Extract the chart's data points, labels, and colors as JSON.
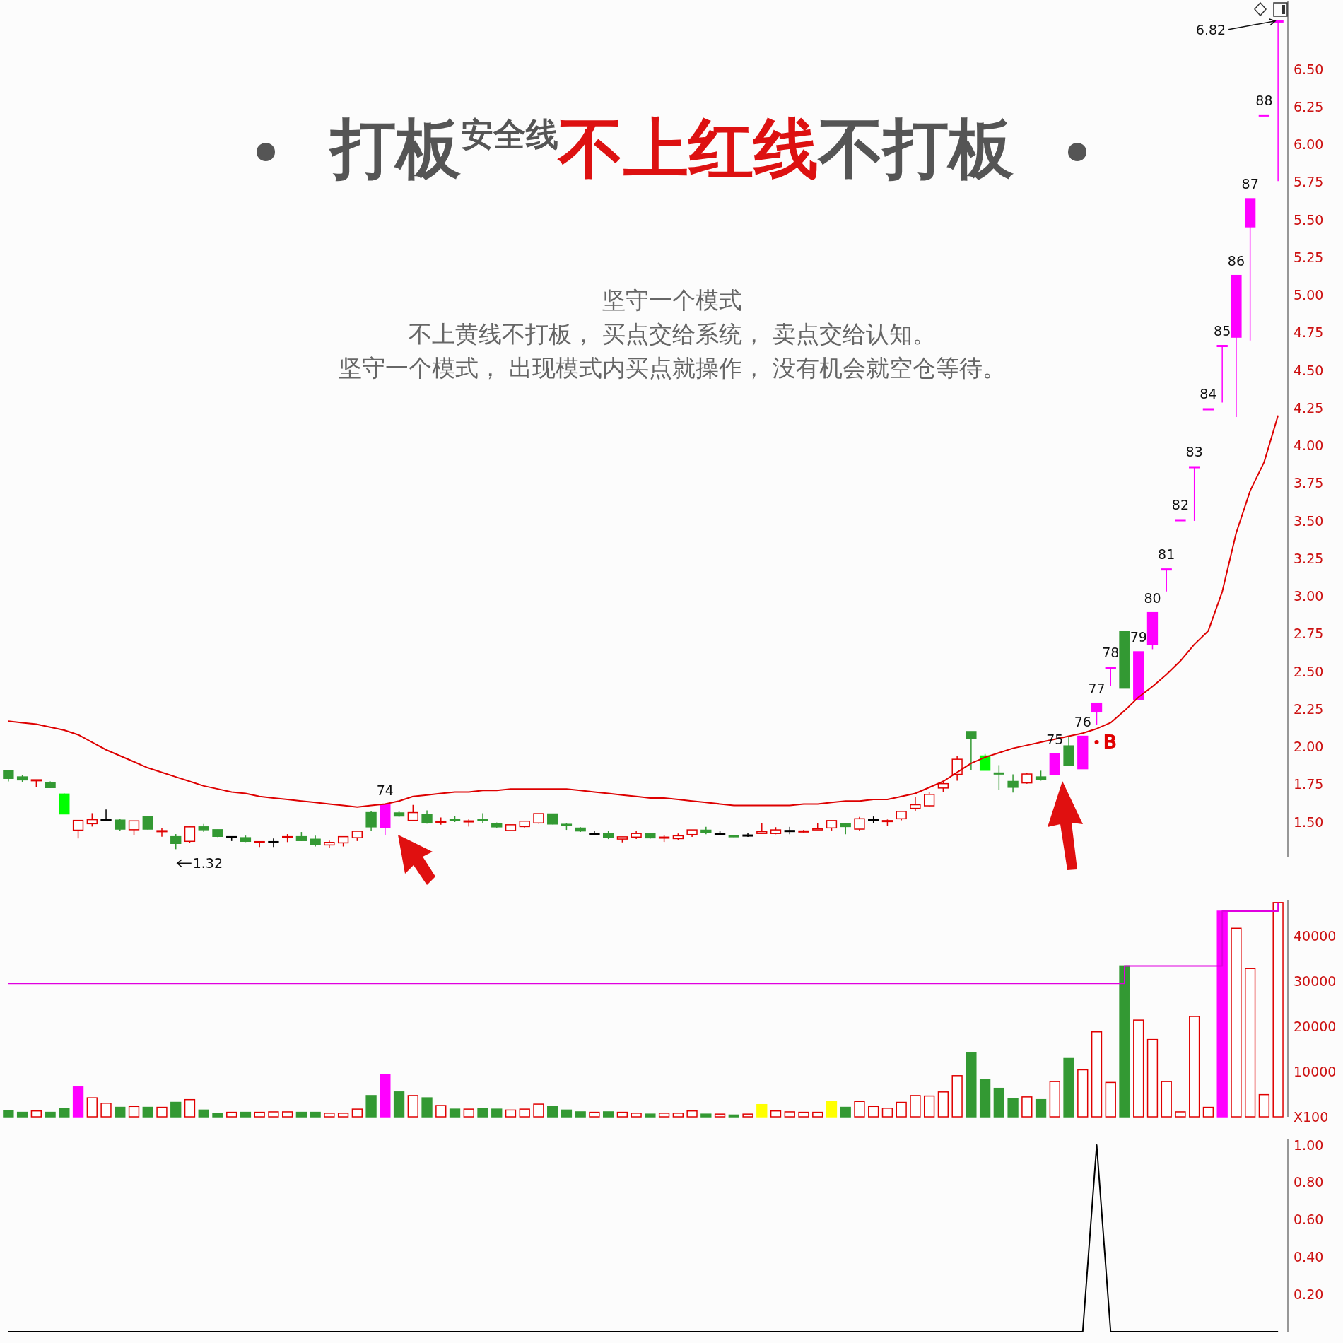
{
  "chart_data": [
    {
      "type": "candlestick",
      "title": "打板安全线不上红线不打板",
      "subtitle": "坚守一个模式",
      "categories": [
        null,
        null,
        null,
        null,
        null,
        null,
        null,
        null,
        null,
        null,
        null,
        null,
        null,
        null,
        null,
        null,
        null,
        null,
        null,
        null,
        null,
        null,
        null,
        null,
        null,
        null,
        null,
        null,
        null,
        null,
        null,
        null,
        null,
        null,
        null,
        null,
        null,
        null,
        null,
        null,
        null,
        null,
        null,
        null,
        null,
        null,
        null,
        null,
        null,
        null,
        null,
        null,
        null,
        null,
        null,
        null,
        null,
        null,
        null,
        null,
        null,
        null,
        null,
        null,
        null,
        null,
        null,
        null,
        null,
        null,
        null,
        null,
        null,
        null,
        null,
        null,
        null,
        null,
        null,
        null,
        null,
        null,
        null,
        null,
        null,
        null,
        null,
        null,
        null,
        null,
        null,
        null
      ],
      "ohlc": [
        [
          1.84,
          1.84,
          1.77,
          1.79
        ],
        [
          1.8,
          1.81,
          1.765,
          1.78
        ],
        [
          1.775,
          1.781,
          1.733,
          1.781
        ],
        [
          1.762,
          1.77,
          1.725,
          1.729
        ],
        [
          1.686,
          1.69,
          1.554,
          1.554
        ],
        [
          1.446,
          1.511,
          1.391,
          1.511
        ],
        [
          1.489,
          1.559,
          1.47,
          1.516
        ],
        [
          1.518,
          1.583,
          1.516,
          1.518
        ],
        [
          1.513,
          1.52,
          1.441,
          1.453
        ],
        [
          1.449,
          1.508,
          1.415,
          1.508
        ],
        [
          1.537,
          1.54,
          1.45,
          1.453
        ],
        [
          1.441,
          1.463,
          1.403,
          1.443
        ],
        [
          1.403,
          1.42,
          1.32,
          1.358
        ],
        [
          1.372,
          1.47,
          1.36,
          1.468
        ],
        [
          1.468,
          1.487,
          1.434,
          1.449
        ],
        [
          1.449,
          1.45,
          1.4,
          1.405
        ],
        [
          1.403,
          1.403,
          1.374,
          1.403
        ],
        [
          1.396,
          1.41,
          1.367,
          1.372
        ],
        [
          1.369,
          1.37,
          1.334,
          1.37
        ],
        [
          1.37,
          1.391,
          1.334,
          1.37
        ],
        [
          1.401,
          1.42,
          1.367,
          1.403
        ],
        [
          1.403,
          1.434,
          1.374,
          1.377
        ],
        [
          1.386,
          1.41,
          1.338,
          1.353
        ],
        [
          1.348,
          1.377,
          1.331,
          1.365
        ],
        [
          1.362,
          1.403,
          1.338,
          1.403
        ],
        [
          1.396,
          1.44,
          1.374,
          1.439
        ],
        [
          1.563,
          1.57,
          1.439,
          1.468
        ],
        [
          1.463,
          1.614,
          1.415,
          1.614
        ],
        [
          1.561,
          1.573,
          1.535,
          1.54
        ],
        [
          1.511,
          1.614,
          1.51,
          1.563
        ],
        [
          1.549,
          1.578,
          1.49,
          1.494
        ],
        [
          1.504,
          1.53,
          1.482,
          1.506
        ],
        [
          1.518,
          1.54,
          1.5,
          1.516
        ],
        [
          1.506,
          1.518,
          1.47,
          1.508
        ],
        [
          1.518,
          1.559,
          1.494,
          1.516
        ],
        [
          1.489,
          1.497,
          1.463,
          1.468
        ],
        [
          1.444,
          1.482,
          1.441,
          1.482
        ],
        [
          1.47,
          1.508,
          1.465,
          1.506
        ],
        [
          1.494,
          1.556,
          1.49,
          1.556
        ],
        [
          1.554,
          1.556,
          1.485,
          1.487
        ],
        [
          1.485,
          1.493,
          1.448,
          1.476
        ],
        [
          1.46,
          1.466,
          1.434,
          1.441
        ],
        [
          1.426,
          1.439,
          1.412,
          1.426
        ],
        [
          1.424,
          1.439,
          1.387,
          1.4
        ],
        [
          1.387,
          1.402,
          1.365,
          1.402
        ],
        [
          1.4,
          1.439,
          1.387,
          1.424
        ],
        [
          1.424,
          1.426,
          1.39,
          1.395
        ],
        [
          1.398,
          1.414,
          1.368,
          1.4
        ],
        [
          1.39,
          1.424,
          1.382,
          1.409
        ],
        [
          1.417,
          1.448,
          1.402,
          1.448
        ],
        [
          1.446,
          1.468,
          1.419,
          1.429
        ],
        [
          1.426,
          1.439,
          1.412,
          1.426
        ],
        [
          1.412,
          1.414,
          1.4,
          1.402
        ],
        [
          1.414,
          1.426,
          1.402,
          1.414
        ],
        [
          1.424,
          1.493,
          1.424,
          1.436
        ],
        [
          1.424,
          1.466,
          1.419,
          1.448
        ],
        [
          1.444,
          1.468,
          1.419,
          1.444
        ],
        [
          1.44,
          1.448,
          1.426,
          1.441
        ],
        [
          1.448,
          1.493,
          1.448,
          1.456
        ],
        [
          1.461,
          1.51,
          1.444,
          1.51
        ],
        [
          1.49,
          1.49,
          1.419,
          1.47
        ],
        [
          1.453,
          1.534,
          1.444,
          1.522
        ],
        [
          1.517,
          1.537,
          1.493,
          1.517
        ],
        [
          1.508,
          1.517,
          1.475,
          1.51
        ],
        [
          1.522,
          1.571,
          1.512,
          1.571
        ],
        [
          1.591,
          1.665,
          1.574,
          1.615
        ],
        [
          1.608,
          1.701,
          1.603,
          1.684
        ],
        [
          1.726,
          1.775,
          1.701,
          1.755
        ],
        [
          1.817,
          1.94,
          1.775,
          1.917
        ],
        [
          2.101,
          2.101,
          1.844,
          2.057
        ],
        [
          1.939,
          1.952,
          1.844,
          1.844
        ],
        [
          1.826,
          1.878,
          1.711,
          1.824
        ],
        [
          1.77,
          1.817,
          1.696,
          1.731
        ],
        [
          1.76,
          1.829,
          1.755,
          1.819
        ],
        [
          1.8,
          1.841,
          1.775,
          1.782
        ],
        [
          1.814,
          1.952,
          1.814,
          1.952
        ],
        [
          2.006,
          2.07,
          1.873,
          1.878
        ],
        [
          1.854,
          2.07,
          1.854,
          2.07
        ],
        [
          2.231,
          2.29,
          2.147,
          2.29
        ],
        [
          2.526,
          2.526,
          2.406,
          2.526
        ],
        [
          2.768,
          2.768,
          2.389,
          2.389
        ],
        [
          2.315,
          2.631,
          2.315,
          2.631
        ],
        [
          2.68,
          2.891,
          2.648,
          2.891
        ],
        [
          3.181,
          3.181,
          3.032,
          3.181
        ],
        [
          3.508,
          3.508,
          3.508,
          3.508
        ],
        [
          3.86,
          3.86,
          3.5,
          3.86
        ],
        [
          4.245,
          4.245,
          4.245,
          4.245
        ],
        [
          4.665,
          4.665,
          4.286,
          4.665
        ],
        [
          4.72,
          5.13,
          4.19,
          5.13
        ],
        [
          5.453,
          5.64,
          4.698,
          5.64
        ],
        [
          6.196,
          6.196,
          6.196,
          6.196
        ],
        [
          6.82,
          6.82,
          5.757,
          6.82
        ]
      ],
      "colors": [
        "#339933",
        "#339933",
        "#e00000",
        "#339933",
        "#00ff00",
        "#e00000",
        "#e00000",
        "#000000",
        "#339933",
        "#e00000",
        "#339933",
        "#e00000",
        "#339933",
        "#e00000",
        "#339933",
        "#339933",
        "#000000",
        "#339933",
        "#e00000",
        "#000000",
        "#e00000",
        "#339933",
        "#339933",
        "#e00000",
        "#e00000",
        "#e00000",
        "#339933",
        "#ff00ff",
        "#339933",
        "#e00000",
        "#339933",
        "#e00000",
        "#339933",
        "#e00000",
        "#339933",
        "#339933",
        "#e00000",
        "#e00000",
        "#e00000",
        "#339933",
        "#339933",
        "#339933",
        "#000000",
        "#339933",
        "#e00000",
        "#e00000",
        "#339933",
        "#e00000",
        "#e00000",
        "#e00000",
        "#339933",
        "#000000",
        "#339933",
        "#000000",
        "#e00000",
        "#e00000",
        "#000000",
        "#e00000",
        "#e00000",
        "#e00000",
        "#339933",
        "#e00000",
        "#000000",
        "#e00000",
        "#e00000",
        "#e00000",
        "#e00000",
        "#e00000",
        "#e00000",
        "#339933",
        "#00ff00",
        "#339933",
        "#339933",
        "#e00000",
        "#339933",
        "#ff00ff",
        "#339933",
        "#ff00ff",
        "#ff00ff",
        "#ff00ff",
        "#339933",
        "#ff00ff",
        "#ff00ff",
        "#ff00ff",
        "#ff00ff",
        "#ff00ff",
        "#ff00ff",
        "#ff00ff",
        "#ff00ff",
        "#ff00ff",
        "#ff00ff",
        "#ff00ff"
      ],
      "value_labels": [
        null,
        null,
        null,
        null,
        null,
        null,
        null,
        null,
        null,
        null,
        null,
        null,
        null,
        null,
        null,
        null,
        null,
        null,
        null,
        null,
        null,
        null,
        null,
        null,
        null,
        null,
        null,
        "74",
        null,
        null,
        null,
        null,
        null,
        null,
        null,
        null,
        null,
        null,
        null,
        null,
        null,
        null,
        null,
        null,
        null,
        null,
        null,
        null,
        null,
        null,
        null,
        null,
        null,
        null,
        null,
        null,
        null,
        null,
        null,
        null,
        null,
        null,
        null,
        null,
        null,
        null,
        null,
        null,
        null,
        null,
        null,
        null,
        null,
        null,
        null,
        "75",
        null,
        "76",
        "77",
        "78",
        null,
        "79",
        "80",
        "81",
        "82",
        "83",
        "84",
        "85",
        "86",
        "87",
        "88",
        null
      ],
      "series": [
        {
          "type": "line",
          "color": "#dd0000",
          "values": [
            2.17,
            2.16,
            2.15,
            2.13,
            2.11,
            2.08,
            2.03,
            1.98,
            1.94,
            1.9,
            1.86,
            1.83,
            1.8,
            1.77,
            1.74,
            1.72,
            1.7,
            1.69,
            1.67,
            1.66,
            1.65,
            1.64,
            1.63,
            1.62,
            1.61,
            1.6,
            1.61,
            1.62,
            1.64,
            1.67,
            1.68,
            1.69,
            1.7,
            1.7,
            1.71,
            1.71,
            1.72,
            1.72,
            1.72,
            1.72,
            1.72,
            1.71,
            1.7,
            1.69,
            1.68,
            1.67,
            1.66,
            1.66,
            1.65,
            1.64,
            1.63,
            1.62,
            1.61,
            1.61,
            1.61,
            1.61,
            1.61,
            1.62,
            1.62,
            1.63,
            1.64,
            1.64,
            1.65,
            1.65,
            1.67,
            1.69,
            1.73,
            1.77,
            1.83,
            1.89,
            1.93,
            1.96,
            1.99,
            2.01,
            2.03,
            2.05,
            2.07,
            2.09,
            2.12,
            2.16,
            2.24,
            2.33,
            2.4,
            2.48,
            2.57,
            2.68,
            2.77,
            3.03,
            3.42,
            3.7,
            3.89,
            4.2
          ]
        },
        {
          "type": "scatter",
          "color": "#e00000",
          "marker": "circle",
          "values": [
            null,
            null,
            null,
            null,
            null,
            null,
            null,
            null,
            null,
            null,
            null,
            null,
            null,
            null,
            null,
            null,
            null,
            null,
            null,
            null,
            null,
            null,
            null,
            null,
            null,
            null,
            null,
            null,
            null,
            null,
            null,
            null,
            null,
            null,
            null,
            null,
            null,
            null,
            null,
            null,
            null,
            null,
            null,
            null,
            null,
            null,
            null,
            null,
            null,
            null,
            null,
            null,
            null,
            null,
            null,
            null,
            null,
            null,
            null,
            null,
            null,
            null,
            null,
            null,
            null,
            null,
            null,
            null,
            null,
            null,
            null,
            null,
            null,
            null,
            null,
            null,
            null,
            null,
            2.03,
            null,
            null,
            null,
            null,
            null,
            null,
            null,
            null,
            null,
            null,
            null,
            null,
            null
          ],
          "value_labels": [
            null,
            null,
            null,
            null,
            null,
            null,
            null,
            null,
            null,
            null,
            null,
            null,
            null,
            null,
            null,
            null,
            null,
            null,
            null,
            null,
            null,
            null,
            null,
            null,
            null,
            null,
            null,
            null,
            null,
            null,
            null,
            null,
            null,
            null,
            null,
            null,
            null,
            null,
            null,
            null,
            null,
            null,
            null,
            null,
            null,
            null,
            null,
            null,
            null,
            null,
            null,
            null,
            null,
            null,
            null,
            null,
            null,
            null,
            null,
            null,
            null,
            null,
            null,
            null,
            null,
            null,
            null,
            null,
            null,
            null,
            null,
            null,
            null,
            null,
            null,
            null,
            null,
            null,
            "B",
            null,
            null,
            null,
            null,
            null,
            null,
            null,
            null,
            null,
            null,
            null,
            null,
            null
          ]
        }
      ],
      "annotations": [
        "不上黄线不打板， 买点交给系统， 卖点交给认知。",
        "坚守一个模式， 出现模式内买点就操作， 没有机会就空仓等待。",
        "1.32",
        "6.82"
      ],
      "ylim": [
        1.27,
        6.95
      ],
      "yticks": [
        {
          "value": 1.5,
          "label": "1.50"
        },
        {
          "value": 1.75,
          "label": "1.75"
        },
        {
          "value": 2,
          "label": "2.00"
        },
        {
          "value": 2.25,
          "label": "2.25"
        },
        {
          "value": 2.5,
          "label": "2.50"
        },
        {
          "value": 2.75,
          "label": "2.75"
        },
        {
          "value": 3,
          "label": "3.00"
        },
        {
          "value": 3.25,
          "label": "3.25"
        },
        {
          "value": 3.5,
          "label": "3.50"
        },
        {
          "value": 3.75,
          "label": "3.75"
        },
        {
          "value": 4,
          "label": "4.00"
        },
        {
          "value": 4.25,
          "label": "4.25"
        },
        {
          "value": 4.5,
          "label": "4.50"
        },
        {
          "value": 4.75,
          "label": "4.75"
        },
        {
          "value": 5,
          "label": "5.00"
        },
        {
          "value": 5.25,
          "label": "5.25"
        },
        {
          "value": 5.5,
          "label": "5.50"
        },
        {
          "value": 5.75,
          "label": "5.75"
        },
        {
          "value": 6,
          "label": "6.00"
        },
        {
          "value": 6.25,
          "label": "6.25"
        },
        {
          "value": 6.5,
          "label": "6.50"
        }
      ],
      "tick_labels": "y"
    },
    {
      "type": "bar",
      "categories": [
        null,
        null,
        null,
        null,
        null,
        null,
        null,
        null,
        null,
        null,
        null,
        null,
        null,
        null,
        null,
        null,
        null,
        null,
        null,
        null,
        null,
        null,
        null,
        null,
        null,
        null,
        null,
        null,
        null,
        null,
        null,
        null,
        null,
        null,
        null,
        null,
        null,
        null,
        null,
        null,
        null,
        null,
        null,
        null,
        null,
        null,
        null,
        null,
        null,
        null,
        null,
        null,
        null,
        null,
        null,
        null,
        null,
        null,
        null,
        null,
        null,
        null,
        null,
        null,
        null,
        null,
        null,
        null,
        null,
        null,
        null,
        null,
        null,
        null,
        null,
        null,
        null,
        null,
        null,
        null,
        null,
        null,
        null,
        null,
        null,
        null,
        null,
        null,
        null,
        null,
        null,
        null
      ],
      "series": [
        {
          "values": [
            1300,
            1000,
            1300,
            1000,
            1900,
            6600,
            4200,
            3000,
            2100,
            2300,
            2100,
            2100,
            3200,
            3800,
            1500,
            800,
            1000,
            1000,
            1000,
            1100,
            1100,
            1000,
            1000,
            800,
            800,
            1700,
            4700,
            9300,
            5500,
            4700,
            4200,
            2500,
            1700,
            1700,
            1900,
            1700,
            1500,
            1700,
            2800,
            2300,
            1500,
            1100,
            1000,
            1100,
            1000,
            800,
            600,
            800,
            800,
            1300,
            600,
            600,
            400,
            600,
            2700,
            1300,
            1100,
            1000,
            1000,
            3400,
            2100,
            3400,
            2300,
            1900,
            3200,
            4700,
            4600,
            5500,
            9100,
            14200,
            8200,
            6300,
            4000,
            4400,
            3800,
            7800,
            12900,
            10400,
            18800,
            7600,
            33400,
            21400,
            17100,
            7800,
            1100,
            22200,
            2100,
            45500,
            41700,
            32800,
            4900,
            47400
          ],
          "colors": [
            "#339933",
            "#339933",
            "#e00000",
            "#339933",
            "#339933",
            "#ff00ff",
            "#e00000",
            "#e00000",
            "#339933",
            "#e00000",
            "#339933",
            "#e00000",
            "#339933",
            "#e00000",
            "#339933",
            "#339933",
            "#e00000",
            "#339933",
            "#e00000",
            "#e00000",
            "#e00000",
            "#339933",
            "#339933",
            "#e00000",
            "#e00000",
            "#e00000",
            "#339933",
            "#ff00ff",
            "#339933",
            "#e00000",
            "#339933",
            "#e00000",
            "#339933",
            "#e00000",
            "#339933",
            "#339933",
            "#e00000",
            "#e00000",
            "#e00000",
            "#339933",
            "#339933",
            "#339933",
            "#e00000",
            "#339933",
            "#e00000",
            "#e00000",
            "#339933",
            "#e00000",
            "#e00000",
            "#e00000",
            "#339933",
            "#e00000",
            "#339933",
            "#e00000",
            "#ffff00",
            "#e00000",
            "#e00000",
            "#e00000",
            "#e00000",
            "#ffff00",
            "#339933",
            "#e00000",
            "#e00000",
            "#e00000",
            "#e00000",
            "#e00000",
            "#e00000",
            "#e00000",
            "#e00000",
            "#339933",
            "#339933",
            "#339933",
            "#339933",
            "#e00000",
            "#339933",
            "#e00000",
            "#339933",
            "#e00000",
            "#e00000",
            "#e00000",
            "#339933",
            "#e00000",
            "#e00000",
            "#e00000",
            "#e00000",
            "#e00000",
            "#e00000",
            "#ff00ff",
            "#e00000",
            "#e00000",
            "#e00000",
            "#e00000"
          ]
        },
        {
          "type": "step",
          "color": "#e000e0",
          "values": [
            29500,
            29500,
            29500,
            29500,
            29500,
            29500,
            29500,
            29500,
            29500,
            29500,
            29500,
            29500,
            29500,
            29500,
            29500,
            29500,
            29500,
            29500,
            29500,
            29500,
            29500,
            29500,
            29500,
            29500,
            29500,
            29500,
            29500,
            29500,
            29500,
            29500,
            29500,
            29500,
            29500,
            29500,
            29500,
            29500,
            29500,
            29500,
            29500,
            29500,
            29500,
            29500,
            29500,
            29500,
            29500,
            29500,
            29500,
            29500,
            29500,
            29500,
            29500,
            29500,
            29500,
            29500,
            29500,
            29500,
            29500,
            29500,
            29500,
            29500,
            29500,
            29500,
            29500,
            29500,
            29500,
            29500,
            29500,
            29500,
            29500,
            29500,
            29500,
            29500,
            29500,
            29500,
            29500,
            29500,
            29500,
            29500,
            29500,
            29500,
            33400,
            33400,
            33400,
            33400,
            33400,
            33400,
            33400,
            45500,
            45500,
            45500,
            45500,
            47400
          ]
        }
      ],
      "ylim": [
        0,
        48000
      ],
      "yticks": [
        {
          "value": 0,
          "label": "X100"
        },
        10000,
        20000,
        30000,
        40000
      ],
      "tick_labels": "y"
    },
    {
      "type": "line",
      "categories": [
        null,
        null,
        null,
        null,
        null,
        null,
        null,
        null,
        null,
        null,
        null,
        null,
        null,
        null,
        null,
        null,
        null,
        null,
        null,
        null,
        null,
        null,
        null,
        null,
        null,
        null,
        null,
        null,
        null,
        null,
        null,
        null,
        null,
        null,
        null,
        null,
        null,
        null,
        null,
        null,
        null,
        null,
        null,
        null,
        null,
        null,
        null,
        null,
        null,
        null,
        null,
        null,
        null,
        null,
        null,
        null,
        null,
        null,
        null,
        null,
        null,
        null,
        null,
        null,
        null,
        null,
        null,
        null,
        null,
        null,
        null,
        null,
        null,
        null,
        null,
        null,
        null,
        null,
        null,
        null,
        null,
        null,
        null,
        null,
        null,
        null,
        null,
        null,
        null,
        null,
        null,
        null
      ],
      "color": "#000000",
      "values": [
        0,
        0,
        0,
        0,
        0,
        0,
        0,
        0,
        0,
        0,
        0,
        0,
        0,
        0,
        0,
        0,
        0,
        0,
        0,
        0,
        0,
        0,
        0,
        0,
        0,
        0,
        0,
        0,
        0,
        0,
        0,
        0,
        0,
        0,
        0,
        0,
        0,
        0,
        0,
        0,
        0,
        0,
        0,
        0,
        0,
        0,
        0,
        0,
        0,
        0,
        0,
        0,
        0,
        0,
        0,
        0,
        0,
        0,
        0,
        0,
        0,
        0,
        0,
        0,
        0,
        0,
        0,
        0,
        0,
        0,
        0,
        0,
        0,
        0,
        0,
        0,
        0,
        0,
        1,
        0,
        0,
        0,
        0,
        0,
        0,
        0,
        0,
        0,
        0,
        0,
        0,
        0
      ],
      "ylim": [
        0,
        1.03
      ],
      "yticks": [
        {
          "value": 0.2,
          "label": "0.20"
        },
        {
          "value": 0.4,
          "label": "0.40"
        },
        {
          "value": 0.6,
          "label": "0.60"
        },
        {
          "value": 0.8,
          "label": "0.80"
        },
        {
          "value": 1,
          "label": "1.00"
        }
      ],
      "tick_labels": "y"
    }
  ]
}
